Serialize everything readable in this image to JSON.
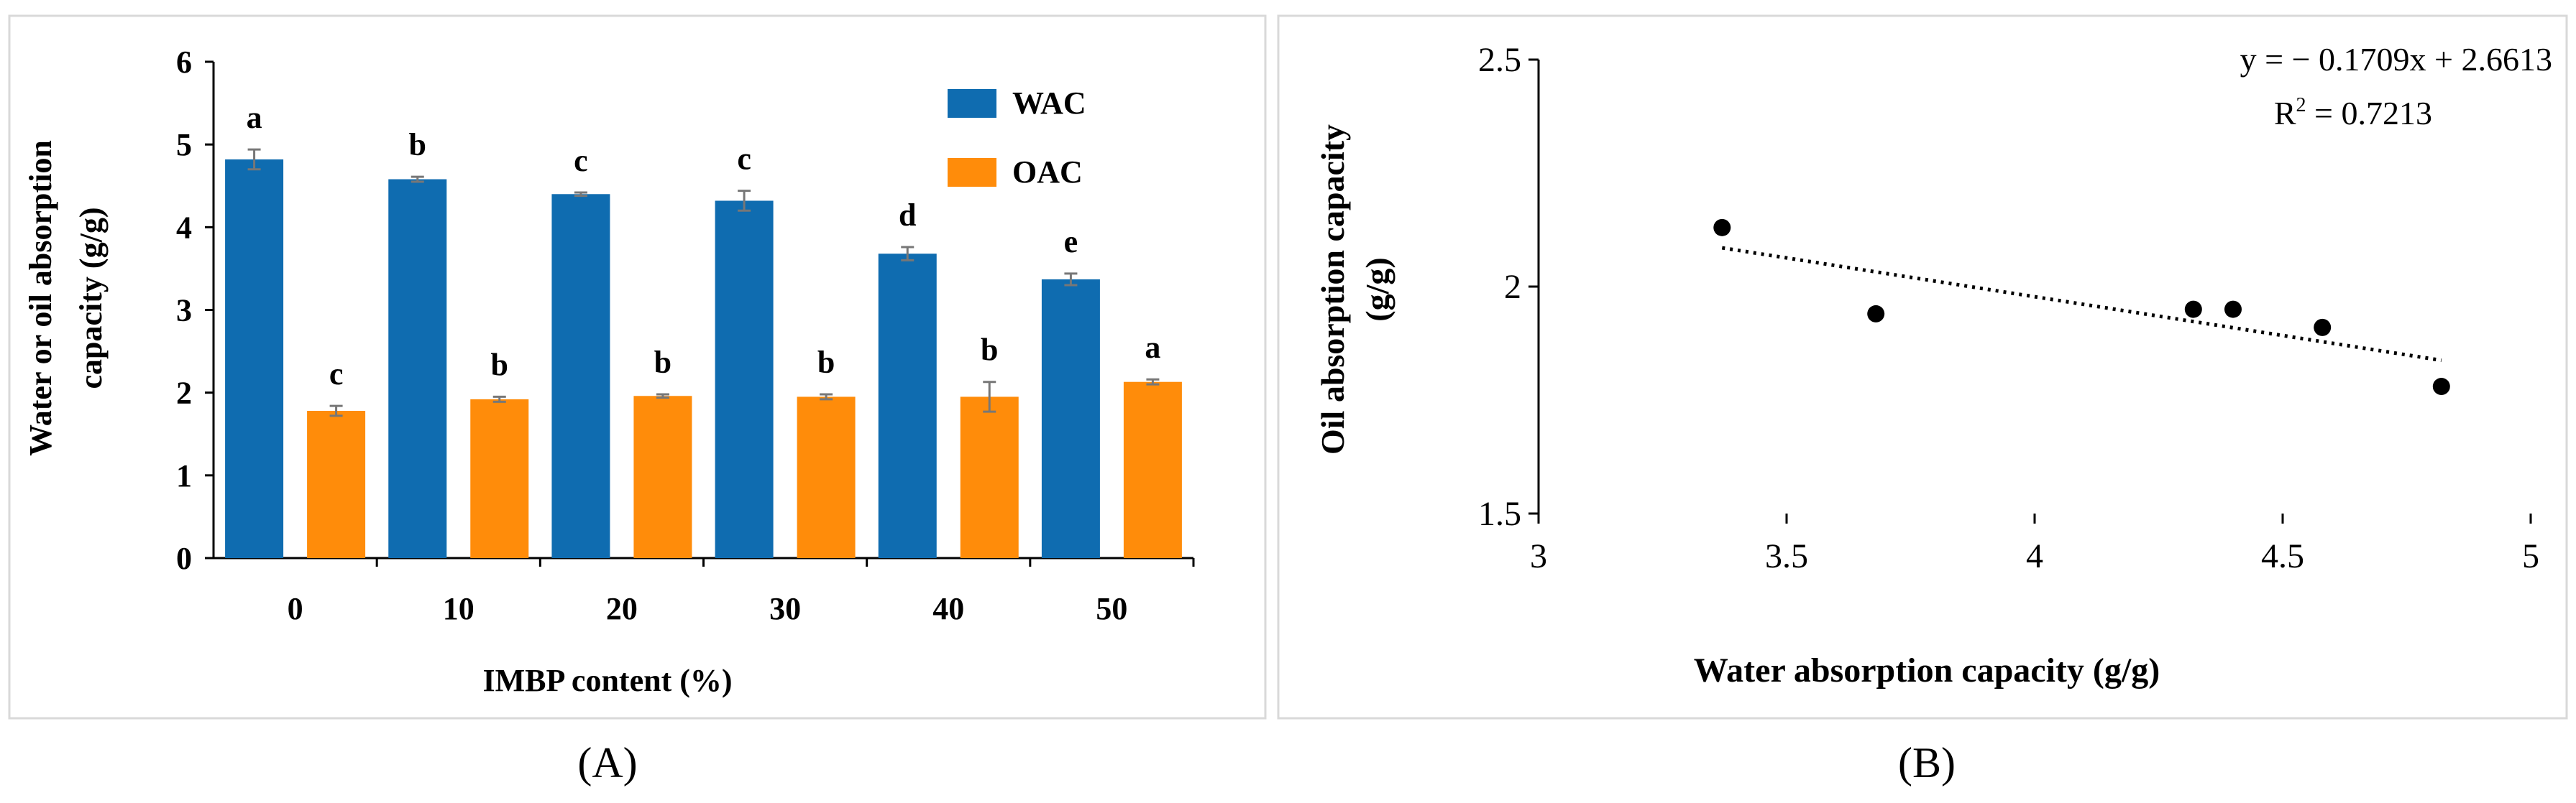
{
  "chart_data": [
    {
      "type": "bar",
      "panel_label": "(A)",
      "categories": [
        "0",
        "10",
        "20",
        "30",
        "40",
        "50"
      ],
      "series": [
        {
          "name": "WAC",
          "color": "#0F6CB0",
          "values": [
            4.82,
            4.58,
            4.4,
            4.32,
            3.68,
            3.37
          ],
          "errors": [
            0.12,
            0.03,
            0.02,
            0.12,
            0.08,
            0.07
          ],
          "letters": [
            "a",
            "b",
            "c",
            "c",
            "d",
            "e"
          ]
        },
        {
          "name": "OAC",
          "color": "#FF8C0A",
          "values": [
            1.78,
            1.92,
            1.96,
            1.95,
            1.95,
            2.13
          ],
          "errors": [
            0.06,
            0.03,
            0.02,
            0.03,
            0.18,
            0.03
          ],
          "letters": [
            "c",
            "b",
            "b",
            "b",
            "b",
            "a"
          ]
        }
      ],
      "xlabel": "IMBP content (%)",
      "ylabel_lines": [
        "Water or oil absorption",
        "capacity (g/g)"
      ],
      "ylim": [
        0,
        6
      ],
      "yticks": [
        "0",
        "1",
        "2",
        "3",
        "4",
        "5",
        "6"
      ],
      "legend_position": "top-right"
    },
    {
      "type": "scatter",
      "panel_label": "(B)",
      "points": [
        {
          "x": 3.37,
          "y": 2.13
        },
        {
          "x": 3.68,
          "y": 1.94
        },
        {
          "x": 4.32,
          "y": 1.95
        },
        {
          "x": 4.4,
          "y": 1.95
        },
        {
          "x": 4.58,
          "y": 1.91
        },
        {
          "x": 4.82,
          "y": 1.78
        }
      ],
      "trendline": {
        "slope": -0.1709,
        "intercept": 2.6613,
        "x_from": 3.37,
        "x_to": 4.82,
        "style": "dotted"
      },
      "equation": "y = − 0.1709x + 2.6613",
      "r_squared_label": "R",
      "r_squared_sup": "2",
      "r_squared_value": " = 0.7213",
      "xlabel": "Water absorption capacity (g/g)",
      "ylabel_lines": [
        "Oil absorption capacity",
        "(g/g)"
      ],
      "xlim": [
        3,
        5
      ],
      "ylim": [
        1.5,
        2.5
      ],
      "xticks": [
        "3",
        "3.5",
        "4",
        "4.5",
        "5"
      ],
      "yticks": [
        "1.5",
        "2",
        "2.5"
      ]
    }
  ]
}
